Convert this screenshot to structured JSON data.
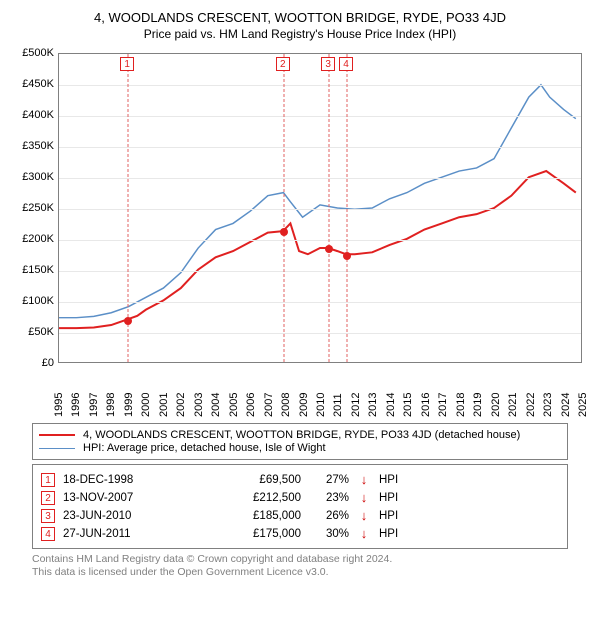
{
  "title": "4, WOODLANDS CRESCENT, WOOTTON BRIDGE, RYDE, PO33 4JD",
  "subtitle": "Price paid vs. HM Land Registry's House Price Index (HPI)",
  "chart": {
    "type": "line",
    "background_color": "#ffffff",
    "grid_color": "#e8e8e8",
    "axis_color": "#808080",
    "xlim": [
      1995,
      2025
    ],
    "ylim": [
      0,
      500000
    ],
    "ytick_step": 50000,
    "yticks": [
      0,
      50000,
      100000,
      150000,
      200000,
      250000,
      300000,
      350000,
      400000,
      450000,
      500000
    ],
    "ytick_labels": [
      "£0",
      "£50K",
      "£100K",
      "£150K",
      "£200K",
      "£250K",
      "£300K",
      "£350K",
      "£400K",
      "£450K",
      "£500K"
    ],
    "xticks": [
      1995,
      1996,
      1997,
      1998,
      1999,
      2000,
      2001,
      2002,
      2003,
      2004,
      2005,
      2006,
      2007,
      2008,
      2009,
      2010,
      2011,
      2012,
      2013,
      2014,
      2015,
      2016,
      2017,
      2018,
      2019,
      2020,
      2021,
      2022,
      2023,
      2024,
      2025
    ],
    "label_fontsize": 11,
    "marker_border_color": "#e02020",
    "vline_color": "#e06060",
    "sale_marker_color": "#e02020",
    "sale_marker_radius": 4,
    "line_width_property": 2,
    "line_width_hpi": 1.5,
    "series": {
      "property": {
        "color": "#e02020",
        "label": "4, WOODLANDS CRESCENT, WOOTTON BRIDGE, RYDE, PO33 4JD (detached house)",
        "data": [
          [
            1995.0,
            55000
          ],
          [
            1996.0,
            55000
          ],
          [
            1997.0,
            56000
          ],
          [
            1998.0,
            60000
          ],
          [
            1998.96,
            69500
          ],
          [
            1999.5,
            75000
          ],
          [
            2000.0,
            85000
          ],
          [
            2001.0,
            100000
          ],
          [
            2002.0,
            120000
          ],
          [
            2003.0,
            150000
          ],
          [
            2004.0,
            170000
          ],
          [
            2005.0,
            180000
          ],
          [
            2006.0,
            195000
          ],
          [
            2007.0,
            210000
          ],
          [
            2007.87,
            212500
          ],
          [
            2008.3,
            225000
          ],
          [
            2008.8,
            180000
          ],
          [
            2009.3,
            175000
          ],
          [
            2010.0,
            185000
          ],
          [
            2010.47,
            185000
          ],
          [
            2011.0,
            180000
          ],
          [
            2011.49,
            175000
          ],
          [
            2012.0,
            175000
          ],
          [
            2013.0,
            178000
          ],
          [
            2014.0,
            190000
          ],
          [
            2015.0,
            200000
          ],
          [
            2016.0,
            215000
          ],
          [
            2017.0,
            225000
          ],
          [
            2018.0,
            235000
          ],
          [
            2019.0,
            240000
          ],
          [
            2020.0,
            250000
          ],
          [
            2021.0,
            270000
          ],
          [
            2022.0,
            300000
          ],
          [
            2023.0,
            310000
          ],
          [
            2023.5,
            300000
          ],
          [
            2024.0,
            290000
          ],
          [
            2024.7,
            275000
          ]
        ]
      },
      "hpi": {
        "color": "#5b8fc7",
        "label": "HPI: Average price, detached house, Isle of Wight",
        "data": [
          [
            1995.0,
            72000
          ],
          [
            1996.0,
            72000
          ],
          [
            1997.0,
            74000
          ],
          [
            1998.0,
            80000
          ],
          [
            1999.0,
            90000
          ],
          [
            2000.0,
            105000
          ],
          [
            2001.0,
            120000
          ],
          [
            2002.0,
            145000
          ],
          [
            2003.0,
            185000
          ],
          [
            2004.0,
            215000
          ],
          [
            2005.0,
            225000
          ],
          [
            2006.0,
            245000
          ],
          [
            2007.0,
            270000
          ],
          [
            2007.9,
            275000
          ],
          [
            2008.3,
            260000
          ],
          [
            2009.0,
            235000
          ],
          [
            2010.0,
            255000
          ],
          [
            2011.0,
            250000
          ],
          [
            2012.0,
            248000
          ],
          [
            2013.0,
            250000
          ],
          [
            2014.0,
            265000
          ],
          [
            2015.0,
            275000
          ],
          [
            2016.0,
            290000
          ],
          [
            2017.0,
            300000
          ],
          [
            2018.0,
            310000
          ],
          [
            2019.0,
            315000
          ],
          [
            2020.0,
            330000
          ],
          [
            2021.0,
            380000
          ],
          [
            2022.0,
            430000
          ],
          [
            2022.7,
            450000
          ],
          [
            2023.2,
            430000
          ],
          [
            2024.0,
            410000
          ],
          [
            2024.7,
            395000
          ]
        ]
      }
    },
    "sales_markers": [
      {
        "n": "1",
        "x": 1998.96
      },
      {
        "n": "2",
        "x": 2007.87
      },
      {
        "n": "3",
        "x": 2010.47
      },
      {
        "n": "4",
        "x": 2011.49
      }
    ],
    "sale_points": [
      {
        "x": 1998.96,
        "y": 69500
      },
      {
        "x": 2007.87,
        "y": 212500
      },
      {
        "x": 2010.47,
        "y": 185000
      },
      {
        "x": 2011.49,
        "y": 175000
      }
    ]
  },
  "legend": {
    "items": [
      {
        "color": "#e02020",
        "width": 2,
        "label": "4, WOODLANDS CRESCENT, WOOTTON BRIDGE, RYDE, PO33 4JD (detached house)"
      },
      {
        "color": "#5b8fc7",
        "width": 1.5,
        "label": "HPI: Average price, detached house, Isle of Wight"
      }
    ]
  },
  "sales": [
    {
      "n": "1",
      "date": "18-DEC-1998",
      "price": "£69,500",
      "pct": "27%",
      "arrow": "↓",
      "hpi": "HPI"
    },
    {
      "n": "2",
      "date": "13-NOV-2007",
      "price": "£212,500",
      "pct": "23%",
      "arrow": "↓",
      "hpi": "HPI"
    },
    {
      "n": "3",
      "date": "23-JUN-2010",
      "price": "£185,000",
      "pct": "26%",
      "arrow": "↓",
      "hpi": "HPI"
    },
    {
      "n": "4",
      "date": "27-JUN-2011",
      "price": "£175,000",
      "pct": "30%",
      "arrow": "↓",
      "hpi": "HPI"
    }
  ],
  "footer": {
    "line1": "Contains HM Land Registry data © Crown copyright and database right 2024.",
    "line2": "This data is licensed under the Open Government Licence v3.0."
  }
}
